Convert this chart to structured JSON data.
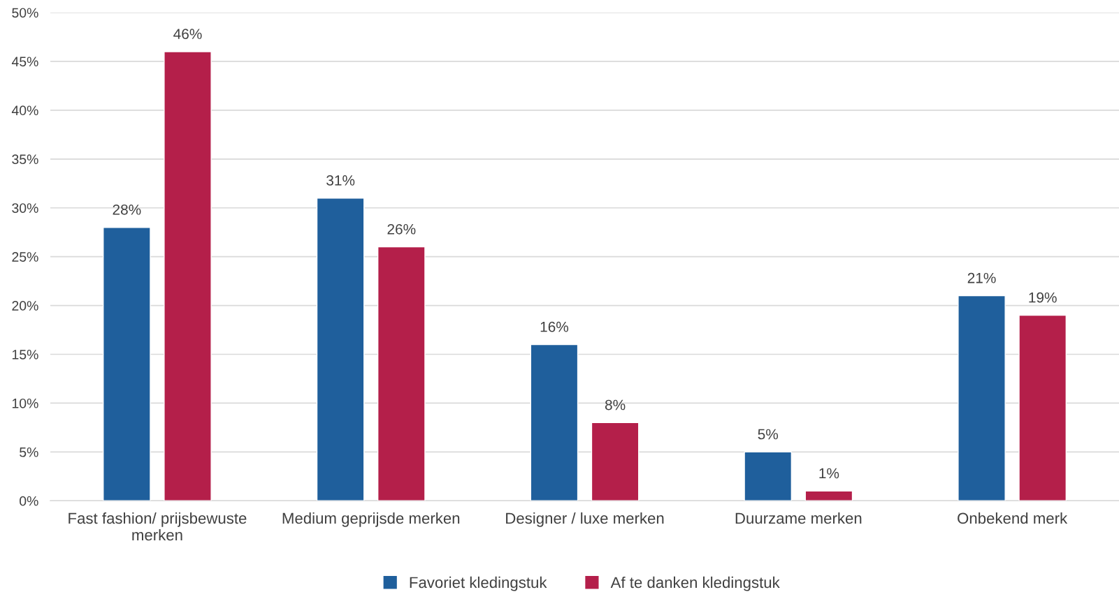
{
  "chart_data": {
    "type": "bar",
    "categories": [
      "Fast fashion/ prijsbewuste merken",
      "Medium geprijsde merken",
      "Designer / luxe merken",
      "Duurzame merken",
      "Onbekend merk"
    ],
    "series": [
      {
        "name": "Favoriet kledingstuk",
        "color": "#1f5f9c",
        "values": [
          28,
          31,
          16,
          5,
          21
        ],
        "value_labels": [
          "28%",
          "31%",
          "16%",
          "5%",
          "21%"
        ]
      },
      {
        "name": "Af te danken kledingstuk",
        "color": "#b41f4a",
        "values": [
          46,
          26,
          8,
          1,
          19
        ],
        "value_labels": [
          "46%",
          "26%",
          "8%",
          "1%",
          "19%"
        ]
      }
    ],
    "ylim": [
      0,
      50
    ],
    "yticks": [
      {
        "value": 0,
        "label": "0%"
      },
      {
        "value": 5,
        "label": "5%"
      },
      {
        "value": 10,
        "label": "10%"
      },
      {
        "value": 15,
        "label": "15%"
      },
      {
        "value": 20,
        "label": "20%"
      },
      {
        "value": 25,
        "label": "25%"
      },
      {
        "value": 30,
        "label": "30%"
      },
      {
        "value": 35,
        "label": "35%"
      },
      {
        "value": 40,
        "label": "40%"
      },
      {
        "value": 45,
        "label": "45%"
      },
      {
        "value": 50,
        "label": "50%"
      }
    ],
    "grid": "y",
    "legend": "bottom"
  }
}
